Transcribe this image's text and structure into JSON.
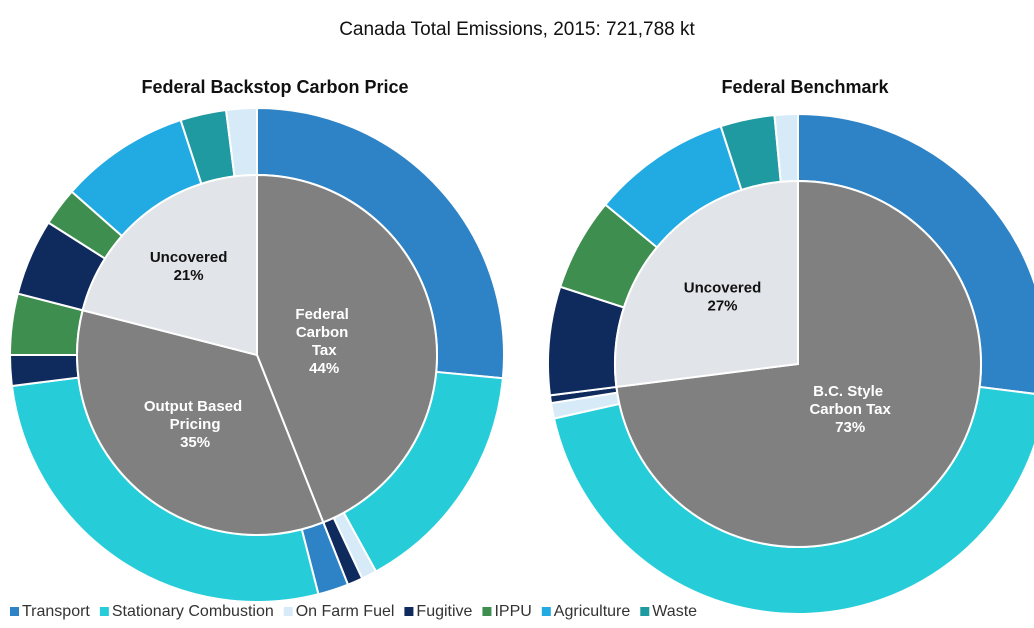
{
  "title": "Canada Total Emissions, 2015: 721,788 kt",
  "legend": {
    "categories": [
      "Transport",
      "Stationary Combustion",
      "On Farm Fuel",
      "Fugitive",
      "IPPU",
      "Agriculture",
      "Waste"
    ],
    "colors": [
      "#2e83c6",
      "#26cdd9",
      "#d6eaf8",
      "#0f2a5c",
      "#3e8e50",
      "#22aae2",
      "#1f9aa0"
    ]
  },
  "chart_data": [
    {
      "type": "pie",
      "title": "Federal Backstop Carbon Price",
      "inner": {
        "categories": [
          "Federal Carbon Tax",
          "Output Based Pricing",
          "Uncovered"
        ],
        "values": [
          44,
          35,
          21
        ],
        "value_labels": [
          "44%",
          "35%",
          "21%"
        ],
        "colors": [
          "#808080",
          "#808080",
          "#e1e4e8"
        ]
      },
      "outer": {
        "categories": [
          "Transport",
          "Stationary Combustion",
          "On Farm Fuel",
          "Fugitive",
          "Transport",
          "Stationary Combustion",
          "Fugitive",
          "IPPU",
          "Fugitive",
          "IPPU",
          "Agriculture",
          "Waste",
          "On Farm Fuel"
        ],
        "values": [
          26.5,
          15.5,
          1,
          1,
          2,
          27,
          2,
          4,
          5,
          2.5,
          8.5,
          3,
          2
        ]
      }
    },
    {
      "type": "pie",
      "title": "Federal Benchmark",
      "inner": {
        "categories": [
          "B.C. Style Carbon Tax",
          "Uncovered"
        ],
        "values": [
          73,
          27
        ],
        "value_labels": [
          "73%",
          "27%"
        ],
        "colors": [
          "#808080",
          "#e1e4e8"
        ]
      },
      "outer": {
        "categories": [
          "Transport",
          "Stationary Combustion",
          "On Farm Fuel",
          "Fugitive",
          "Fugitive",
          "IPPU",
          "Agriculture",
          "Waste",
          "On Farm Fuel"
        ],
        "values": [
          27,
          44.5,
          1,
          0.5,
          7,
          6,
          9,
          3.5,
          1.5
        ]
      }
    }
  ]
}
